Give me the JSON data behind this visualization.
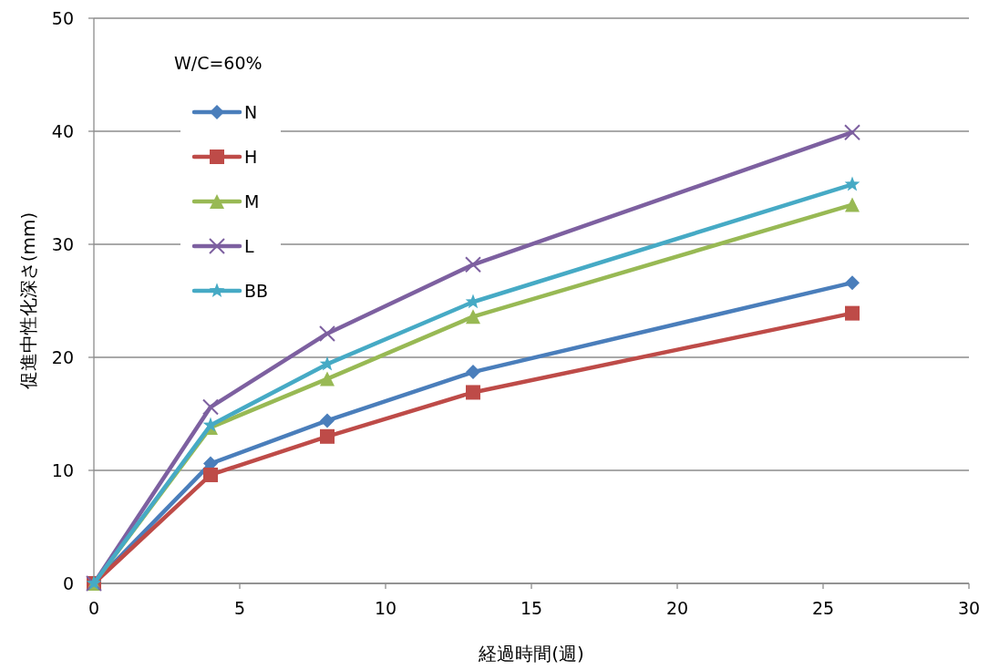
{
  "chart_data": {
    "type": "line",
    "xlabel": "経過時間(週)",
    "ylabel": "促進中性化深さ(mm)",
    "legend_title": "W/C=60%",
    "legend": "top left",
    "grid": "y",
    "x": [
      0,
      4,
      8,
      13,
      26
    ],
    "xlim": [
      0,
      30
    ],
    "xticks": [
      0,
      5,
      10,
      15,
      20,
      25,
      30
    ],
    "ylim": [
      0,
      50
    ],
    "yticks": [
      0,
      10,
      20,
      30,
      40,
      50
    ],
    "series": [
      {
        "name": "N",
        "color": "#4a7ebb",
        "marker": "diamond",
        "values": [
          0,
          10.6,
          14.4,
          18.7,
          26.6
        ]
      },
      {
        "name": "H",
        "color": "#be4b48",
        "marker": "square",
        "values": [
          0,
          9.6,
          13.0,
          16.9,
          23.9
        ]
      },
      {
        "name": "M",
        "color": "#98b954",
        "marker": "triangle",
        "values": [
          0,
          13.8,
          18.1,
          23.6,
          33.5
        ]
      },
      {
        "name": "L",
        "color": "#7d60a0",
        "marker": "cross",
        "values": [
          0,
          15.6,
          22.1,
          28.2,
          39.9
        ]
      },
      {
        "name": "BB",
        "color": "#46aac5",
        "marker": "star",
        "values": [
          0,
          14.0,
          19.4,
          24.9,
          35.3
        ]
      }
    ]
  }
}
